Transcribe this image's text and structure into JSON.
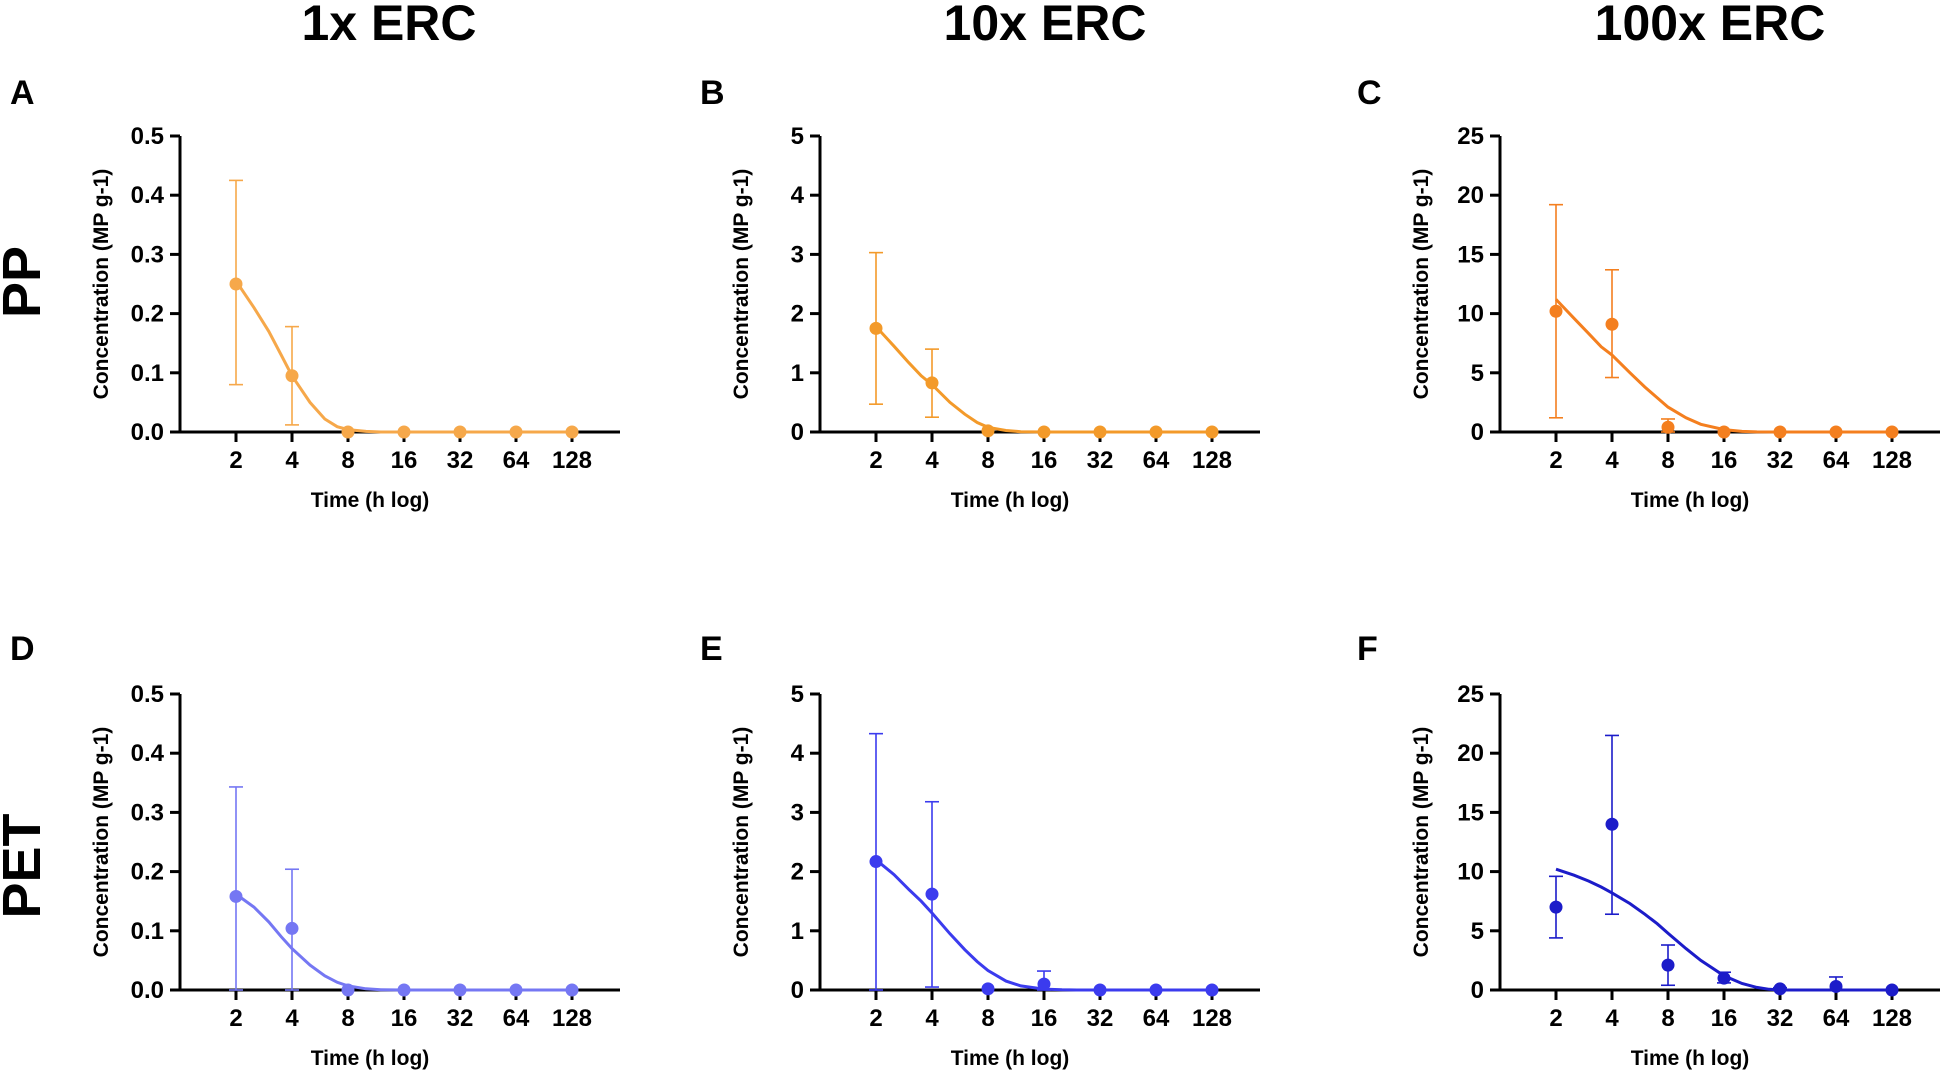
{
  "column_titles": [
    "1x ERC",
    "10x ERC",
    "100x ERC"
  ],
  "row_titles": [
    "PP",
    "PET"
  ],
  "colors": {
    "pp_1x": "#f6a84a",
    "pp_10x": "#f39a2a",
    "pp_100x": "#f47f1f",
    "pet_1x": "#7577f3",
    "pet_10x": "#3b3bee",
    "pet_100x": "#1c1cc9",
    "axis": "#000000"
  },
  "chart_data": [
    {
      "panel": "A",
      "type": "scatter",
      "xlabel": "Time (h log)",
      "ylabel": "Concentration (MP g-1)",
      "x": [
        2,
        4,
        8,
        16,
        32,
        64,
        128
      ],
      "y": [
        0.25,
        0.095,
        0.0,
        0.0,
        0.0,
        0.0,
        0.0
      ],
      "err_low": [
        0.08,
        0.012,
        0,
        0,
        0,
        0,
        0
      ],
      "err_high": [
        0.425,
        0.178,
        0,
        0,
        0,
        0,
        0
      ],
      "fit_x": [
        2,
        2.5,
        3,
        3.5,
        4,
        5,
        6,
        7,
        8,
        10,
        12,
        16,
        20,
        32,
        64,
        128
      ],
      "fit_y": [
        0.255,
        0.21,
        0.17,
        0.13,
        0.095,
        0.05,
        0.022,
        0.009,
        0.004,
        0.001,
        0,
        0,
        0,
        0,
        0,
        0
      ],
      "yticks": [
        0.0,
        0.1,
        0.2,
        0.3,
        0.4,
        0.5
      ],
      "ytick_labels": [
        "0.0",
        "0.1",
        "0.2",
        "0.3",
        "0.4",
        "0.5"
      ],
      "ylim": [
        0,
        0.5
      ],
      "xtick_labels": [
        "2",
        "4",
        "8",
        "16",
        "32",
        "64",
        "128"
      ],
      "color_key": "pp_1x"
    },
    {
      "panel": "B",
      "type": "scatter",
      "xlabel": "Time (h log)",
      "ylabel": "Concentration (MP g-1)",
      "x": [
        2,
        4,
        8,
        16,
        32,
        64,
        128
      ],
      "y": [
        1.75,
        0.83,
        0.02,
        0.0,
        0.0,
        0.0,
        0.0
      ],
      "err_low": [
        0.47,
        0.25,
        0,
        0,
        0,
        0,
        0
      ],
      "err_high": [
        3.03,
        1.4,
        0,
        0,
        0,
        0,
        0
      ],
      "fit_x": [
        2,
        2.5,
        3,
        3.5,
        4,
        5,
        6,
        7,
        8,
        10,
        12,
        16,
        20,
        32,
        64,
        128
      ],
      "fit_y": [
        1.78,
        1.45,
        1.17,
        0.95,
        0.8,
        0.5,
        0.3,
        0.16,
        0.08,
        0.025,
        0.005,
        0,
        0,
        0,
        0,
        0
      ],
      "yticks": [
        0,
        1,
        2,
        3,
        4,
        5
      ],
      "ytick_labels": [
        "0",
        "1",
        "2",
        "3",
        "4",
        "5"
      ],
      "ylim": [
        0,
        5
      ],
      "xtick_labels": [
        "2",
        "4",
        "8",
        "16",
        "32",
        "64",
        "128"
      ],
      "color_key": "pp_10x"
    },
    {
      "panel": "C",
      "type": "scatter",
      "xlabel": "Time (h log)",
      "ylabel": "Concentration (MP g-1)",
      "x": [
        2,
        4,
        8,
        16,
        32,
        64,
        128
      ],
      "y": [
        10.2,
        9.1,
        0.4,
        0.0,
        0.0,
        0.0,
        0.0
      ],
      "err_low": [
        1.2,
        4.6,
        0,
        0,
        0,
        0,
        0
      ],
      "err_high": [
        19.2,
        13.7,
        1.1,
        0,
        0,
        0,
        0
      ],
      "fit_x": [
        2,
        2.5,
        3,
        3.5,
        4,
        5,
        6,
        7,
        8,
        10,
        12,
        16,
        20,
        24,
        32,
        64,
        128
      ],
      "fit_y": [
        11.2,
        9.6,
        8.3,
        7.2,
        6.5,
        5.0,
        3.8,
        2.9,
        2.1,
        1.2,
        0.65,
        0.2,
        0.05,
        0.01,
        0,
        0,
        0
      ],
      "yticks": [
        0,
        5,
        10,
        15,
        20,
        25
      ],
      "ytick_labels": [
        "0",
        "5",
        "10",
        "15",
        "20",
        "25"
      ],
      "ylim": [
        0,
        25
      ],
      "xtick_labels": [
        "2",
        "4",
        "8",
        "16",
        "32",
        "64",
        "128"
      ],
      "color_key": "pp_100x"
    },
    {
      "panel": "D",
      "type": "scatter",
      "xlabel": "Time (h log)",
      "ylabel": "Concentration (MP g-1)",
      "x": [
        2,
        4,
        8,
        16,
        32,
        64,
        128
      ],
      "y": [
        0.158,
        0.104,
        0.0,
        0.0,
        0.0,
        0.0,
        0.0
      ],
      "err_low": [
        0.0,
        0.0,
        0,
        0,
        0,
        0,
        0
      ],
      "err_high": [
        0.343,
        0.204,
        0,
        0,
        0,
        0,
        0
      ],
      "fit_x": [
        2,
        2.5,
        3,
        3.5,
        4,
        5,
        6,
        7,
        8,
        10,
        12,
        16,
        20,
        32,
        64,
        128
      ],
      "fit_y": [
        0.162,
        0.14,
        0.115,
        0.09,
        0.07,
        0.042,
        0.024,
        0.013,
        0.007,
        0.002,
        0.0005,
        0,
        0,
        0,
        0,
        0
      ],
      "yticks": [
        0.0,
        0.1,
        0.2,
        0.3,
        0.4,
        0.5
      ],
      "ytick_labels": [
        "0.0",
        "0.1",
        "0.2",
        "0.3",
        "0.4",
        "0.5"
      ],
      "ylim": [
        0,
        0.5
      ],
      "xtick_labels": [
        "2",
        "4",
        "8",
        "16",
        "32",
        "64",
        "128"
      ],
      "color_key": "pet_1x"
    },
    {
      "panel": "E",
      "type": "scatter",
      "xlabel": "Time (h log)",
      "ylabel": "Concentration (MP g-1)",
      "x": [
        2,
        4,
        8,
        16,
        32,
        64,
        128
      ],
      "y": [
        2.17,
        1.62,
        0.02,
        0.1,
        0.0,
        0.0,
        0.0
      ],
      "err_low": [
        0.0,
        0.05,
        0,
        0.0,
        0,
        0,
        0
      ],
      "err_high": [
        4.33,
        3.18,
        0,
        0.32,
        0,
        0,
        0
      ],
      "fit_x": [
        2,
        2.5,
        3,
        3.5,
        4,
        5,
        6,
        7,
        8,
        10,
        12,
        16,
        20,
        24,
        32,
        64,
        128
      ],
      "fit_y": [
        2.2,
        1.95,
        1.7,
        1.5,
        1.3,
        0.95,
        0.68,
        0.48,
        0.33,
        0.15,
        0.07,
        0.015,
        0.003,
        0,
        0,
        0,
        0
      ],
      "yticks": [
        0,
        1,
        2,
        3,
        4,
        5
      ],
      "ytick_labels": [
        "0",
        "1",
        "2",
        "3",
        "4",
        "5"
      ],
      "ylim": [
        0,
        5
      ],
      "xtick_labels": [
        "2",
        "4",
        "8",
        "16",
        "32",
        "64",
        "128"
      ],
      "color_key": "pet_10x"
    },
    {
      "panel": "F",
      "type": "scatter",
      "xlabel": "Time (h log)",
      "ylabel": "Concentration (MP g-1)",
      "x": [
        2,
        4,
        8,
        16,
        32,
        64,
        128
      ],
      "y": [
        7.0,
        14.0,
        2.1,
        1.0,
        0.1,
        0.3,
        0.0
      ],
      "err_low": [
        4.4,
        6.4,
        0.4,
        0.6,
        0,
        0,
        0
      ],
      "err_high": [
        9.6,
        21.5,
        3.8,
        1.5,
        0.2,
        1.1,
        0
      ],
      "fit_x": [
        2,
        2.5,
        3,
        3.5,
        4,
        5,
        6,
        7,
        8,
        10,
        12,
        16,
        20,
        24,
        28,
        32,
        64,
        128
      ],
      "fit_y": [
        10.2,
        9.7,
        9.2,
        8.7,
        8.2,
        7.3,
        6.4,
        5.6,
        4.8,
        3.5,
        2.5,
        1.2,
        0.55,
        0.22,
        0.06,
        0,
        0,
        0
      ],
      "yticks": [
        0,
        5,
        10,
        15,
        20,
        25
      ],
      "ytick_labels": [
        "0",
        "5",
        "10",
        "15",
        "20",
        "25"
      ],
      "ylim": [
        0,
        25
      ],
      "xtick_labels": [
        "2",
        "4",
        "8",
        "16",
        "32",
        "64",
        "128"
      ],
      "color_key": "pet_100x"
    }
  ]
}
